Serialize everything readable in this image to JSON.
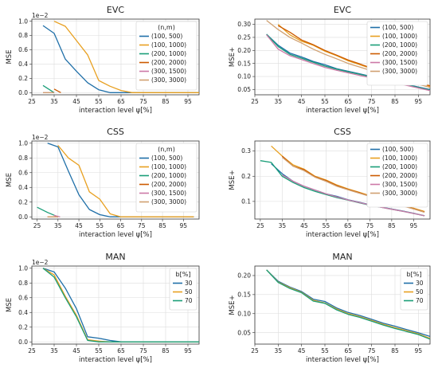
{
  "chart_data": [
    {
      "type": "line",
      "title": "EVC",
      "xlabel": "interaction level ψ[%]",
      "ylabel": "MSE",
      "y_multiplier": "1e−2",
      "xlim": [
        25,
        100
      ],
      "ylim": [
        -0.03,
        1.03
      ],
      "xticks": [
        "25",
        "35",
        "45",
        "55",
        "65",
        "75",
        "85",
        "95"
      ],
      "yticks": [
        "0.0",
        "0.2",
        "0.4",
        "0.6",
        "0.8",
        "1.0"
      ],
      "grid": true,
      "legend_title": "(n,m)",
      "legend_position": "top-right",
      "series": [
        {
          "name": "(100, 500)",
          "color": "#1f6fa8",
          "x": [
            30,
            35,
            40,
            45,
            50,
            55,
            60,
            70,
            80,
            90,
            100
          ],
          "y": [
            0.94,
            0.83,
            0.47,
            0.3,
            0.14,
            0.04,
            0,
            0,
            0,
            0,
            0
          ]
        },
        {
          "name": "(100, 1000)",
          "color": "#e8a020",
          "x": [
            35,
            40,
            45,
            50,
            55,
            60,
            65,
            70,
            80,
            90,
            100
          ],
          "y": [
            1.0,
            0.93,
            0.73,
            0.53,
            0.17,
            0.09,
            0.03,
            0,
            0,
            0,
            0
          ]
        },
        {
          "name": "(200, 1000)",
          "color": "#1a9e78",
          "x": [
            30,
            35
          ],
          "y": [
            0.1,
            0
          ]
        },
        {
          "name": "(200, 2000)",
          "color": "#cc5a00",
          "x": [
            35,
            38
          ],
          "y": [
            0.05,
            0
          ]
        },
        {
          "name": "(300, 1500)",
          "color": "#cc79a7",
          "x": [
            30,
            35
          ],
          "y": [
            0,
            0
          ]
        },
        {
          "name": "(300, 3000)",
          "color": "#d0a070",
          "x": [
            30,
            35
          ],
          "y": [
            0,
            0
          ]
        }
      ]
    },
    {
      "type": "line",
      "title": "EVC",
      "xlabel": "interaction level ψ[%]",
      "ylabel": "MSE+",
      "xlim": [
        25,
        100
      ],
      "ylim": [
        0.03,
        0.32
      ],
      "xticks": [
        "25",
        "35",
        "45",
        "55",
        "65",
        "75",
        "85",
        "95"
      ],
      "yticks": [
        "0.05",
        "0.10",
        "0.15",
        "0.20",
        "0.25",
        "0.30"
      ],
      "grid": true,
      "legend_position": "top-right",
      "series": [
        {
          "name": "(100, 500)",
          "color": "#1f6fa8",
          "x": [
            30,
            35,
            40,
            45,
            50,
            55,
            60,
            65,
            70,
            75,
            80,
            85,
            90,
            95,
            100
          ],
          "y": [
            0.262,
            0.22,
            0.19,
            0.175,
            0.158,
            0.145,
            0.13,
            0.12,
            0.11,
            0.1,
            0.09,
            0.08,
            0.07,
            0.06,
            0.05
          ]
        },
        {
          "name": "(100, 1000)",
          "color": "#e8a020",
          "x": [
            35,
            40,
            45,
            50,
            55,
            60,
            65,
            70,
            75,
            80,
            85,
            90,
            95,
            100
          ],
          "y": [
            0.3,
            0.26,
            0.235,
            0.22,
            0.197,
            0.18,
            0.16,
            0.145,
            0.13,
            0.115,
            0.1,
            0.09,
            0.078,
            0.062
          ]
        },
        {
          "name": "(200, 1000)",
          "color": "#1a9e78",
          "x": [
            30,
            35,
            40,
            45,
            50,
            55,
            60,
            65,
            70,
            75,
            80,
            85,
            90,
            95,
            100
          ],
          "y": [
            0.262,
            0.215,
            0.185,
            0.17,
            0.155,
            0.14,
            0.128,
            0.118,
            0.108,
            0.098,
            0.088,
            0.078,
            0.068,
            0.058,
            0.048
          ]
        },
        {
          "name": "(200, 2000)",
          "color": "#cc5a00",
          "x": [
            35,
            40,
            45,
            50,
            55,
            60,
            65,
            70,
            75,
            80,
            85,
            90,
            95,
            100
          ],
          "y": [
            0.295,
            0.27,
            0.24,
            0.222,
            0.2,
            0.182,
            0.163,
            0.148,
            0.132,
            0.118,
            0.103,
            0.092,
            0.08,
            0.064
          ]
        },
        {
          "name": "(300, 1500)",
          "color": "#cc79a7",
          "x": [
            30,
            35,
            40,
            45,
            50,
            55,
            60,
            65,
            70,
            75,
            80,
            85,
            90,
            95,
            100
          ],
          "y": [
            0.26,
            0.205,
            0.18,
            0.165,
            0.15,
            0.135,
            0.124,
            0.114,
            0.104,
            0.095,
            0.085,
            0.075,
            0.066,
            0.056,
            0.046
          ]
        },
        {
          "name": "(300, 3000)",
          "color": "#d0a070",
          "x": [
            30,
            35,
            40,
            45,
            50,
            55,
            60,
            65,
            70,
            75,
            80,
            85,
            90,
            95,
            100
          ],
          "y": [
            0.315,
            0.28,
            0.25,
            0.228,
            0.205,
            0.185,
            0.168,
            0.15,
            0.136,
            0.122,
            0.108,
            0.095,
            0.083,
            0.07,
            0.058
          ]
        }
      ]
    },
    {
      "type": "line",
      "title": "CSS",
      "xlabel": "interaction level ψ[%]",
      "ylabel": "MSE",
      "y_multiplier": "1e−2",
      "xlim": [
        22.5,
        102.5
      ],
      "ylim": [
        -0.03,
        1.03
      ],
      "xticks": [
        "25",
        "35",
        "45",
        "55",
        "65",
        "75",
        "85",
        "95"
      ],
      "yticks": [
        "0.0",
        "0.2",
        "0.4",
        "0.6",
        "0.8",
        "1.0"
      ],
      "grid": true,
      "legend_title": "(n,m)",
      "legend_position": "top-right",
      "series": [
        {
          "name": "(100, 500)",
          "color": "#1f6fa8",
          "x": [
            30,
            35,
            40,
            45,
            50,
            55,
            60,
            70,
            80,
            90,
            100
          ],
          "y": [
            1.0,
            0.95,
            0.62,
            0.3,
            0.1,
            0.03,
            0,
            0,
            0,
            0,
            0
          ]
        },
        {
          "name": "(100, 1000)",
          "color": "#e8a020",
          "x": [
            35,
            40,
            45,
            50,
            55,
            60,
            65,
            70,
            80,
            90,
            100
          ],
          "y": [
            0.97,
            0.8,
            0.7,
            0.34,
            0.24,
            0.04,
            0,
            0,
            0,
            0,
            0
          ]
        },
        {
          "name": "(200, 1000)",
          "color": "#1a9e78",
          "x": [
            25,
            30,
            35
          ],
          "y": [
            0.13,
            0.06,
            0
          ]
        },
        {
          "name": "(200, 2000)",
          "color": "#cc5a00",
          "x": [
            30,
            35
          ],
          "y": [
            0,
            0
          ]
        },
        {
          "name": "(300, 1500)",
          "color": "#cc79a7",
          "x": [
            33,
            36
          ],
          "y": [
            0.02,
            0
          ]
        },
        {
          "name": "(300, 3000)",
          "color": "#d0a070",
          "x": [
            30,
            35
          ],
          "y": [
            0,
            0
          ]
        }
      ]
    },
    {
      "type": "line",
      "title": "CSS",
      "xlabel": "interaction level ψ[%]",
      "ylabel": "MSE+",
      "xlim": [
        22.5,
        102.5
      ],
      "ylim": [
        0.03,
        0.34
      ],
      "xticks": [
        "25",
        "35",
        "45",
        "55",
        "65",
        "75",
        "85",
        "95"
      ],
      "yticks": [
        "0.1",
        "0.2",
        "0.3"
      ],
      "grid": true,
      "legend_position": "top-right",
      "series": [
        {
          "name": "(100, 500)",
          "color": "#1f6fa8",
          "x": [
            30,
            35,
            40,
            45,
            50,
            55,
            60,
            65,
            70,
            75,
            80,
            85,
            90,
            95,
            100
          ],
          "y": [
            0.25,
            0.21,
            0.18,
            0.16,
            0.145,
            0.13,
            0.12,
            0.107,
            0.097,
            0.087,
            0.078,
            0.07,
            0.062,
            0.053,
            0.043
          ]
        },
        {
          "name": "(100, 1000)",
          "color": "#e8a020",
          "x": [
            30,
            35,
            40,
            45,
            50,
            55,
            60,
            65,
            70,
            75,
            80,
            85,
            90,
            95,
            100
          ],
          "y": [
            0.32,
            0.28,
            0.245,
            0.228,
            0.2,
            0.185,
            0.165,
            0.15,
            0.137,
            0.123,
            0.11,
            0.097,
            0.085,
            0.073,
            0.06
          ]
        },
        {
          "name": "(200, 1000)",
          "color": "#1a9e78",
          "x": [
            25,
            30,
            35,
            40,
            45,
            50,
            55,
            60,
            65,
            70,
            75,
            80,
            85,
            90,
            95,
            100
          ],
          "y": [
            0.262,
            0.255,
            0.2,
            0.175,
            0.155,
            0.14,
            0.127,
            0.115,
            0.105,
            0.095,
            0.085,
            0.077,
            0.069,
            0.061,
            0.052,
            0.043
          ]
        },
        {
          "name": "(200, 2000)",
          "color": "#cc5a00",
          "x": [
            35,
            40,
            45,
            50,
            55,
            60,
            65,
            70,
            75,
            80,
            85,
            90,
            95,
            100
          ],
          "y": [
            0.28,
            0.24,
            0.226,
            0.198,
            0.183,
            0.163,
            0.148,
            0.135,
            0.121,
            0.108,
            0.095,
            0.083,
            0.071,
            0.058
          ]
        },
        {
          "name": "(300, 1500)",
          "color": "#cc79a7",
          "x": [
            35,
            40,
            45,
            50,
            55,
            60,
            65,
            70,
            75,
            80,
            85,
            90,
            95,
            100
          ],
          "y": [
            0.205,
            0.18,
            0.16,
            0.145,
            0.13,
            0.118,
            0.106,
            0.096,
            0.086,
            0.077,
            0.069,
            0.061,
            0.052,
            0.043
          ]
        },
        {
          "name": "(300, 3000)",
          "color": "#d0a070",
          "x": [
            35,
            40,
            45,
            50,
            55,
            60,
            65,
            70,
            75,
            80,
            85,
            90,
            95,
            100
          ],
          "y": [
            0.275,
            0.24,
            0.222,
            0.196,
            0.18,
            0.16,
            0.146,
            0.133,
            0.12,
            0.107,
            0.094,
            0.082,
            0.07,
            0.057
          ]
        }
      ]
    },
    {
      "type": "line",
      "title": "MAN",
      "xlabel": "interaction level ψ[%]",
      "ylabel": "MSE",
      "y_multiplier": "1e−2",
      "xlim": [
        25,
        100
      ],
      "ylim": [
        -0.03,
        1.03
      ],
      "xticks": [
        "25",
        "35",
        "45",
        "55",
        "65",
        "75",
        "85",
        "95"
      ],
      "yticks": [
        "0.0",
        "0.2",
        "0.4",
        "0.6",
        "0.8",
        "1.0"
      ],
      "grid": true,
      "legend_title": "b[%]",
      "legend_position": "top-right",
      "series": [
        {
          "name": "30",
          "color": "#1f6fa8",
          "x": [
            30,
            35,
            40,
            45,
            50,
            55,
            60,
            65,
            70,
            80,
            90,
            100
          ],
          "y": [
            1.0,
            0.95,
            0.73,
            0.45,
            0.07,
            0.05,
            0.02,
            0,
            0,
            0,
            0,
            0
          ]
        },
        {
          "name": "50",
          "color": "#e8a020",
          "x": [
            30,
            35,
            40,
            45,
            50,
            55,
            60,
            65,
            70,
            80,
            90,
            100
          ],
          "y": [
            1.0,
            0.91,
            0.62,
            0.36,
            0.03,
            0.01,
            0,
            0,
            0,
            0,
            0,
            0
          ]
        },
        {
          "name": "70",
          "color": "#1a9e78",
          "x": [
            30,
            35,
            40,
            45,
            50,
            55,
            60,
            65,
            70,
            80,
            90,
            100
          ],
          "y": [
            1.0,
            0.88,
            0.6,
            0.34,
            0.02,
            0,
            0,
            0,
            0,
            0,
            0,
            0
          ]
        }
      ]
    },
    {
      "type": "line",
      "title": "MAN",
      "xlabel": "interaction level ψ[%]",
      "ylabel": "MSE+",
      "xlim": [
        25,
        100
      ],
      "ylim": [
        0.02,
        0.225
      ],
      "xticks": [
        "25",
        "35",
        "45",
        "55",
        "65",
        "75",
        "85",
        "95"
      ],
      "yticks": [
        "0.05",
        "0.10",
        "0.15",
        "0.20"
      ],
      "grid": true,
      "legend_title": "b[%]",
      "legend_position": "top-right",
      "series": [
        {
          "name": "30",
          "color": "#1f6fa8",
          "x": [
            30,
            35,
            40,
            45,
            50,
            55,
            60,
            65,
            70,
            75,
            80,
            85,
            90,
            95,
            100
          ],
          "y": [
            0.215,
            0.185,
            0.17,
            0.158,
            0.138,
            0.132,
            0.115,
            0.103,
            0.095,
            0.085,
            0.075,
            0.067,
            0.058,
            0.05,
            0.04
          ]
        },
        {
          "name": "50",
          "color": "#e8a020",
          "x": [
            30,
            35,
            40,
            45,
            50,
            55,
            60,
            65,
            70,
            75,
            80,
            85,
            90,
            95,
            100
          ],
          "y": [
            0.215,
            0.183,
            0.168,
            0.156,
            0.135,
            0.128,
            0.112,
            0.1,
            0.092,
            0.082,
            0.072,
            0.063,
            0.055,
            0.047,
            0.035
          ]
        },
        {
          "name": "70",
          "color": "#1a9e78",
          "x": [
            30,
            35,
            40,
            45,
            50,
            55,
            60,
            65,
            70,
            75,
            80,
            85,
            90,
            95,
            100
          ],
          "y": [
            0.215,
            0.182,
            0.166,
            0.155,
            0.133,
            0.127,
            0.11,
            0.098,
            0.09,
            0.08,
            0.07,
            0.061,
            0.053,
            0.045,
            0.033
          ]
        }
      ]
    }
  ]
}
